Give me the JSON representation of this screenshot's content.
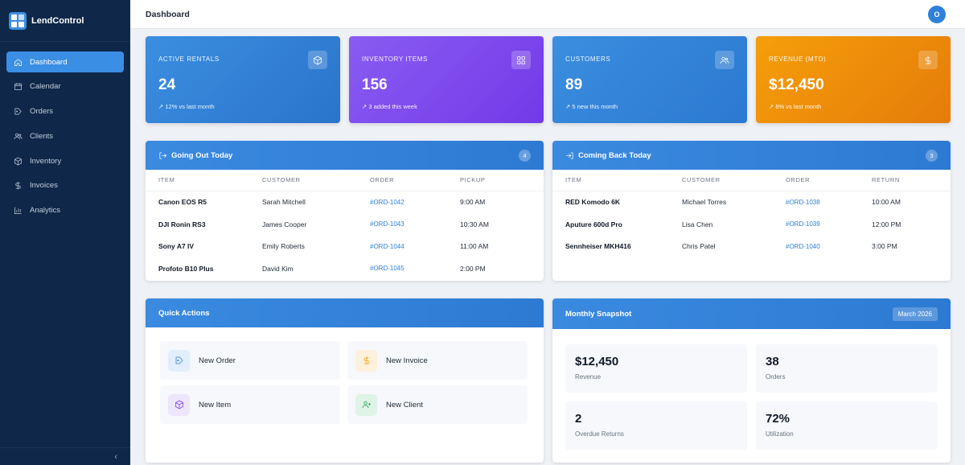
{
  "app": {
    "name": "LendControl"
  },
  "sidebar": {
    "items": [
      {
        "label": "Dashboard",
        "icon": "home-icon"
      },
      {
        "label": "Calendar",
        "icon": "calendar-icon"
      },
      {
        "label": "Orders",
        "icon": "tag-icon"
      },
      {
        "label": "Clients",
        "icon": "users-icon"
      },
      {
        "label": "Inventory",
        "icon": "box-icon"
      },
      {
        "label": "Invoices",
        "icon": "dollar-icon"
      },
      {
        "label": "Analytics",
        "icon": "bar-chart-icon"
      }
    ],
    "collapse_glyph": "‹"
  },
  "header": {
    "title": "Dashboard",
    "avatar_initial": "O"
  },
  "stats": [
    {
      "label": "Active Rentals",
      "value": "24",
      "sub": "12% vs last month",
      "icon": "box-icon",
      "color": "#2f80d8"
    },
    {
      "label": "Inventory Items",
      "value": "156",
      "sub": "3 added this week",
      "icon": "grid-icon",
      "color": "#7c3aed"
    },
    {
      "label": "Customers",
      "value": "89",
      "sub": "5 new this month",
      "icon": "users-icon",
      "color": "#2f80d8"
    },
    {
      "label": "Revenue (MTD)",
      "value": "$12,450",
      "sub": "8% vs last month",
      "icon": "dollar-icon",
      "color": "#f59e0b"
    }
  ],
  "going_out": {
    "title": "Going Out Today",
    "count": "4",
    "columns": [
      "Item",
      "Customer",
      "Order",
      "Pickup"
    ],
    "rows": [
      {
        "item": "Canon EOS R5",
        "customer": "Sarah Mitchell",
        "order": "#ORD-1042",
        "time": "9:00 AM"
      },
      {
        "item": "DJI Ronin RS3",
        "customer": "James Cooper",
        "order": "#ORD-1043",
        "time": "10:30 AM"
      },
      {
        "item": "Sony A7 IV",
        "customer": "Emily Roberts",
        "order": "#ORD-1044",
        "time": "11:00 AM"
      },
      {
        "item": "Profoto B10 Plus",
        "customer": "David Kim",
        "order": "#ORD-1045",
        "time": "2:00 PM"
      }
    ]
  },
  "coming_back": {
    "title": "Coming Back Today",
    "count": "3",
    "columns": [
      "Item",
      "Customer",
      "Order",
      "Return"
    ],
    "rows": [
      {
        "item": "RED Komodo 6K",
        "customer": "Michael Torres",
        "order": "#ORD-1038",
        "time": "10:00 AM"
      },
      {
        "item": "Aputure 600d Pro",
        "customer": "Lisa Chen",
        "order": "#ORD-1039",
        "time": "12:00 PM"
      },
      {
        "item": "Sennheiser MKH416",
        "customer": "Chris Patel",
        "order": "#ORD-1040",
        "time": "3:00 PM"
      }
    ]
  },
  "quick_actions": {
    "title": "Quick Actions",
    "items": [
      {
        "label": "New Order",
        "icon": "tag-icon",
        "color": "#2f80d8"
      },
      {
        "label": "New Invoice",
        "icon": "dollar-icon",
        "color": "#f59e0b"
      },
      {
        "label": "New Item",
        "icon": "box-icon",
        "color": "#7c3aed"
      },
      {
        "label": "New Client",
        "icon": "user-plus-icon",
        "color": "#16a34a"
      }
    ]
  },
  "snapshot": {
    "title": "Monthly Snapshot",
    "period": "March 2026",
    "tiles": [
      {
        "value": "$12,450",
        "label": "Revenue"
      },
      {
        "value": "38",
        "label": "Orders"
      },
      {
        "value": "2",
        "label": "Overdue Returns"
      },
      {
        "value": "72%",
        "label": "Utilization"
      }
    ]
  }
}
